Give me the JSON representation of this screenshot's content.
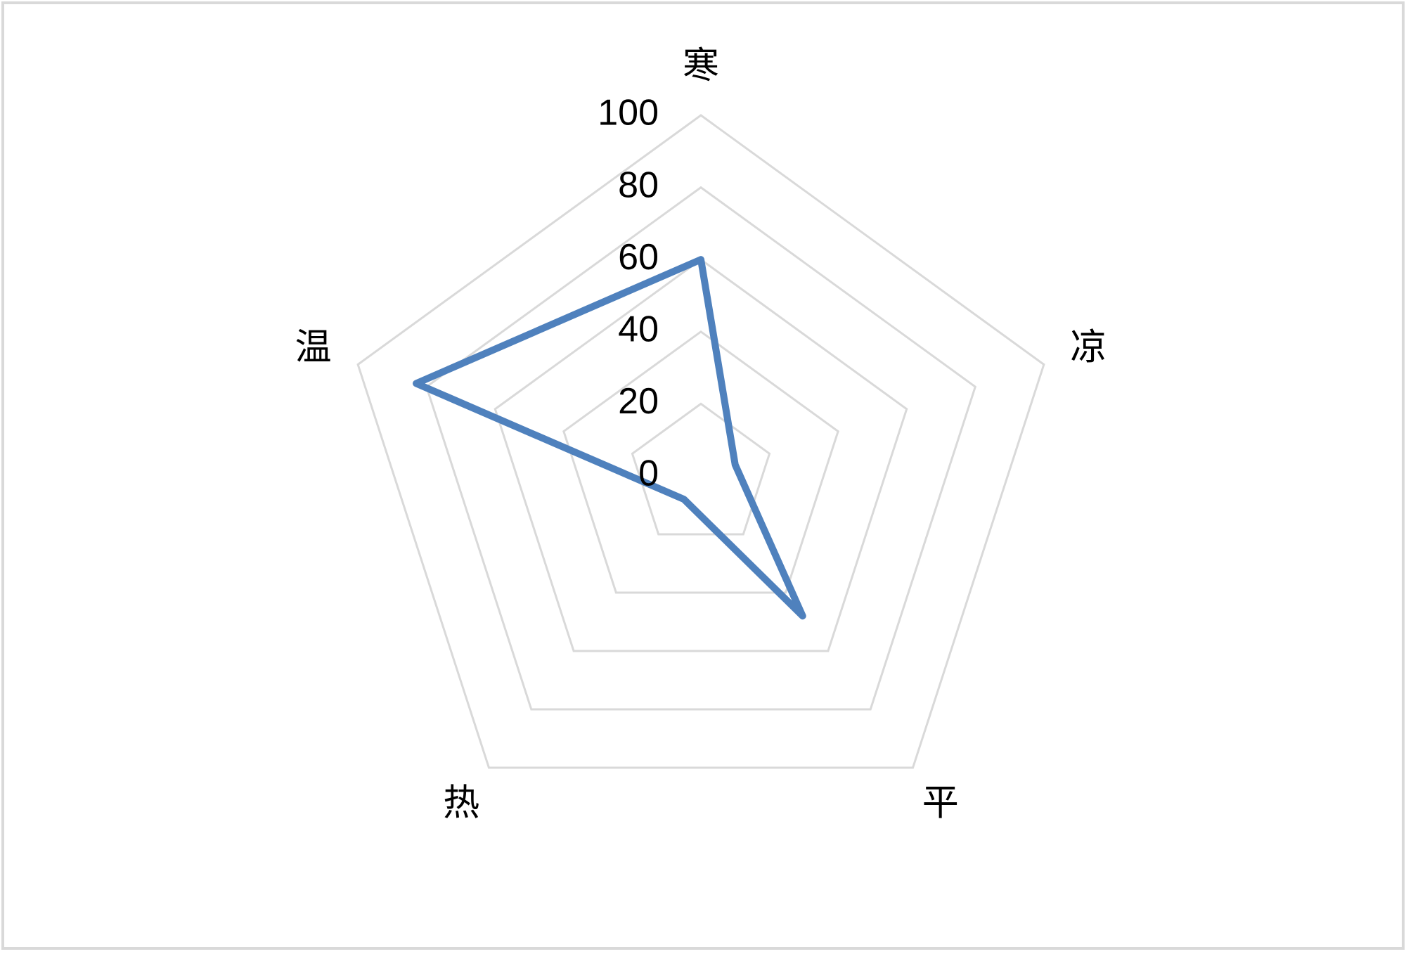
{
  "chart_data": {
    "type": "radar",
    "categories": [
      "寒",
      "凉",
      "平",
      "热",
      "温"
    ],
    "series": [
      {
        "color": "#4f81bd",
        "values": [
          60,
          10,
          48,
          8,
          83
        ]
      }
    ],
    "ylim": [
      0,
      100
    ],
    "yticks": [
      0,
      20,
      40,
      60,
      80,
      100
    ],
    "grid": true,
    "grid_color": "#d9d9d9"
  }
}
